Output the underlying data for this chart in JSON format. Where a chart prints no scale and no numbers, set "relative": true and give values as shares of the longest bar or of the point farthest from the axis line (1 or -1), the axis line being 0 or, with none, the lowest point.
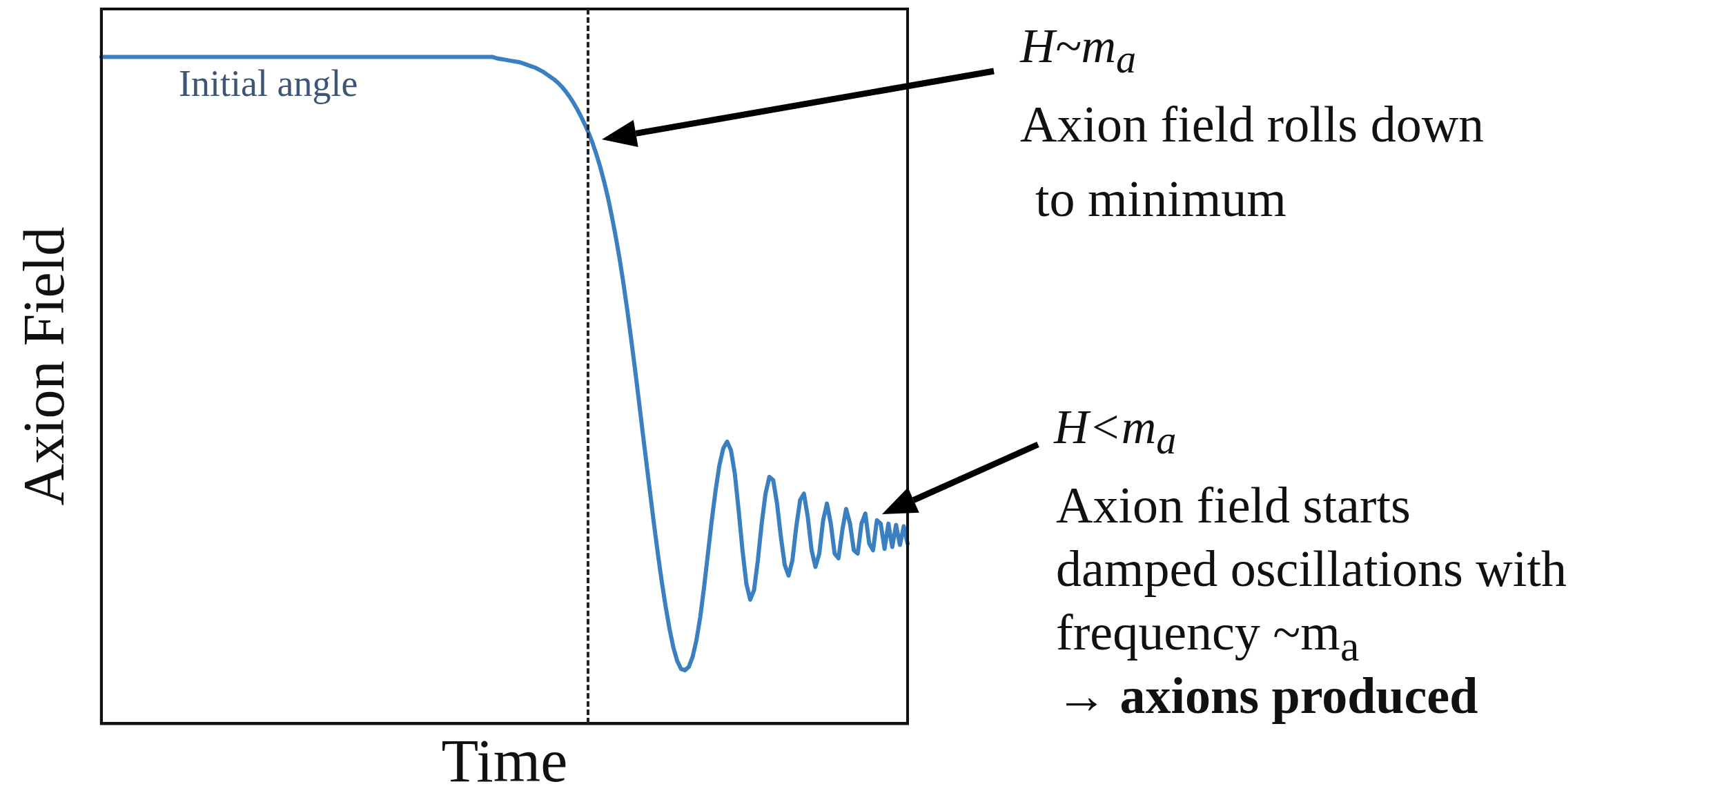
{
  "chart_data": {
    "type": "line",
    "xlabel": "Time",
    "ylabel": "Axion Field",
    "relative": true,
    "tick_labels": false,
    "color": "#3a7fc0",
    "categories": [
      null,
      null,
      null,
      null,
      null,
      null,
      null,
      null,
      null,
      null,
      null,
      null,
      null,
      null,
      null,
      null,
      null,
      null,
      null,
      null,
      null,
      null,
      null,
      null,
      null,
      null,
      null,
      null,
      null,
      null,
      null,
      null,
      null,
      null,
      null,
      null,
      null,
      null,
      null,
      null,
      null,
      null,
      null,
      null,
      null,
      null,
      null,
      null,
      null,
      null,
      null,
      null,
      null,
      null,
      null,
      null,
      null,
      null,
      null,
      null,
      null,
      null,
      null,
      null,
      null,
      null,
      null,
      null,
      null,
      null,
      null,
      null,
      null,
      null,
      null,
      null,
      null,
      null,
      null,
      null,
      null,
      null,
      null,
      null,
      null,
      null,
      null,
      null,
      null,
      null,
      null,
      null,
      null,
      null,
      null,
      null,
      null,
      null,
      null,
      null,
      null,
      null,
      null,
      null,
      null,
      null,
      null,
      null,
      null,
      null,
      null,
      null,
      null,
      null,
      null,
      null,
      null,
      null,
      null,
      null,
      null,
      null,
      null,
      null,
      null,
      null,
      null,
      null,
      null,
      null,
      null,
      null,
      null,
      null,
      null,
      null,
      null,
      null,
      null,
      null,
      null,
      null,
      null,
      null,
      null,
      null,
      null,
      null,
      null,
      null,
      null,
      null,
      null,
      null,
      null,
      null,
      null,
      null,
      null,
      null,
      null,
      null,
      null,
      null,
      null,
      null,
      null,
      null,
      null,
      null,
      null,
      null,
      null,
      null,
      null,
      null,
      null,
      null,
      null,
      null,
      null,
      null,
      null,
      null,
      null,
      null,
      null,
      null,
      null,
      null,
      null,
      null,
      null,
      null,
      null,
      null,
      null,
      null,
      null,
      null,
      null,
      null,
      null,
      null,
      null,
      null,
      null,
      null,
      null,
      null,
      null
    ],
    "values": [
      1,
      1,
      1,
      1,
      1,
      1,
      1,
      1,
      1,
      1,
      1,
      1,
      1,
      1,
      1,
      1,
      1,
      1,
      1,
      1,
      1,
      1,
      1,
      1,
      1,
      1,
      1,
      1,
      1,
      1,
      1,
      1,
      1,
      1,
      1,
      1,
      1,
      1,
      1,
      1,
      1,
      1,
      1,
      1,
      1,
      1,
      1,
      1,
      1,
      1,
      1,
      1,
      1,
      1,
      1,
      1,
      1,
      1,
      1,
      1,
      1,
      1,
      1,
      1,
      1,
      1,
      1,
      1,
      1,
      1,
      1,
      1,
      1,
      1,
      1,
      1,
      1,
      1,
      1,
      1,
      1,
      1,
      1,
      1,
      1,
      1,
      1,
      1,
      1,
      1,
      1,
      1,
      1,
      1,
      1,
      1,
      1,
      1,
      1,
      1,
      1,
      1,
      1,
      0.998,
      0.997,
      0.996,
      0.995,
      0.994,
      0.993,
      0.992,
      0.99,
      0.988,
      0.986,
      0.984,
      0.981,
      0.978,
      0.974,
      0.97,
      0.966,
      0.961,
      0.955,
      0.948,
      0.94,
      0.931,
      0.921,
      0.91,
      0.898,
      0.885,
      0.87,
      0.853,
      0.834,
      0.812,
      0.788,
      0.76,
      0.73,
      0.697,
      0.66,
      0.62,
      0.577,
      0.532,
      0.485,
      0.437,
      0.39,
      0.343,
      0.297,
      0.253,
      0.212,
      0.175,
      0.142,
      0.114,
      0.094,
      0.082,
      0.08,
      0.085,
      0.1,
      0.125,
      0.16,
      0.205,
      0.255,
      0.305,
      0.35,
      0.388,
      0.413,
      0.423,
      0.41,
      0.375,
      0.32,
      0.26,
      0.21,
      0.186,
      0.2,
      0.245,
      0.3,
      0.345,
      0.37,
      0.365,
      0.33,
      0.28,
      0.238,
      0.222,
      0.245,
      0.295,
      0.335,
      0.345,
      0.31,
      0.26,
      0.235,
      0.255,
      0.305,
      0.33,
      0.3,
      0.255,
      0.248,
      0.29,
      0.322,
      0.3,
      0.26,
      0.255,
      0.3,
      0.315,
      0.27,
      0.26,
      0.305,
      0.3,
      0.262,
      0.3,
      0.265,
      0.298,
      0.268,
      0.296,
      0.27
    ],
    "annotations": [
      "Initial angle",
      "H~m$_{a}$",
      "Axion field rolls down",
      "to minimum",
      "H<m$_{a}$",
      "Axion field starts",
      "damped oscillations with",
      "frequency ~m$_{a}$",
      "→ axions produced"
    ]
  }
}
